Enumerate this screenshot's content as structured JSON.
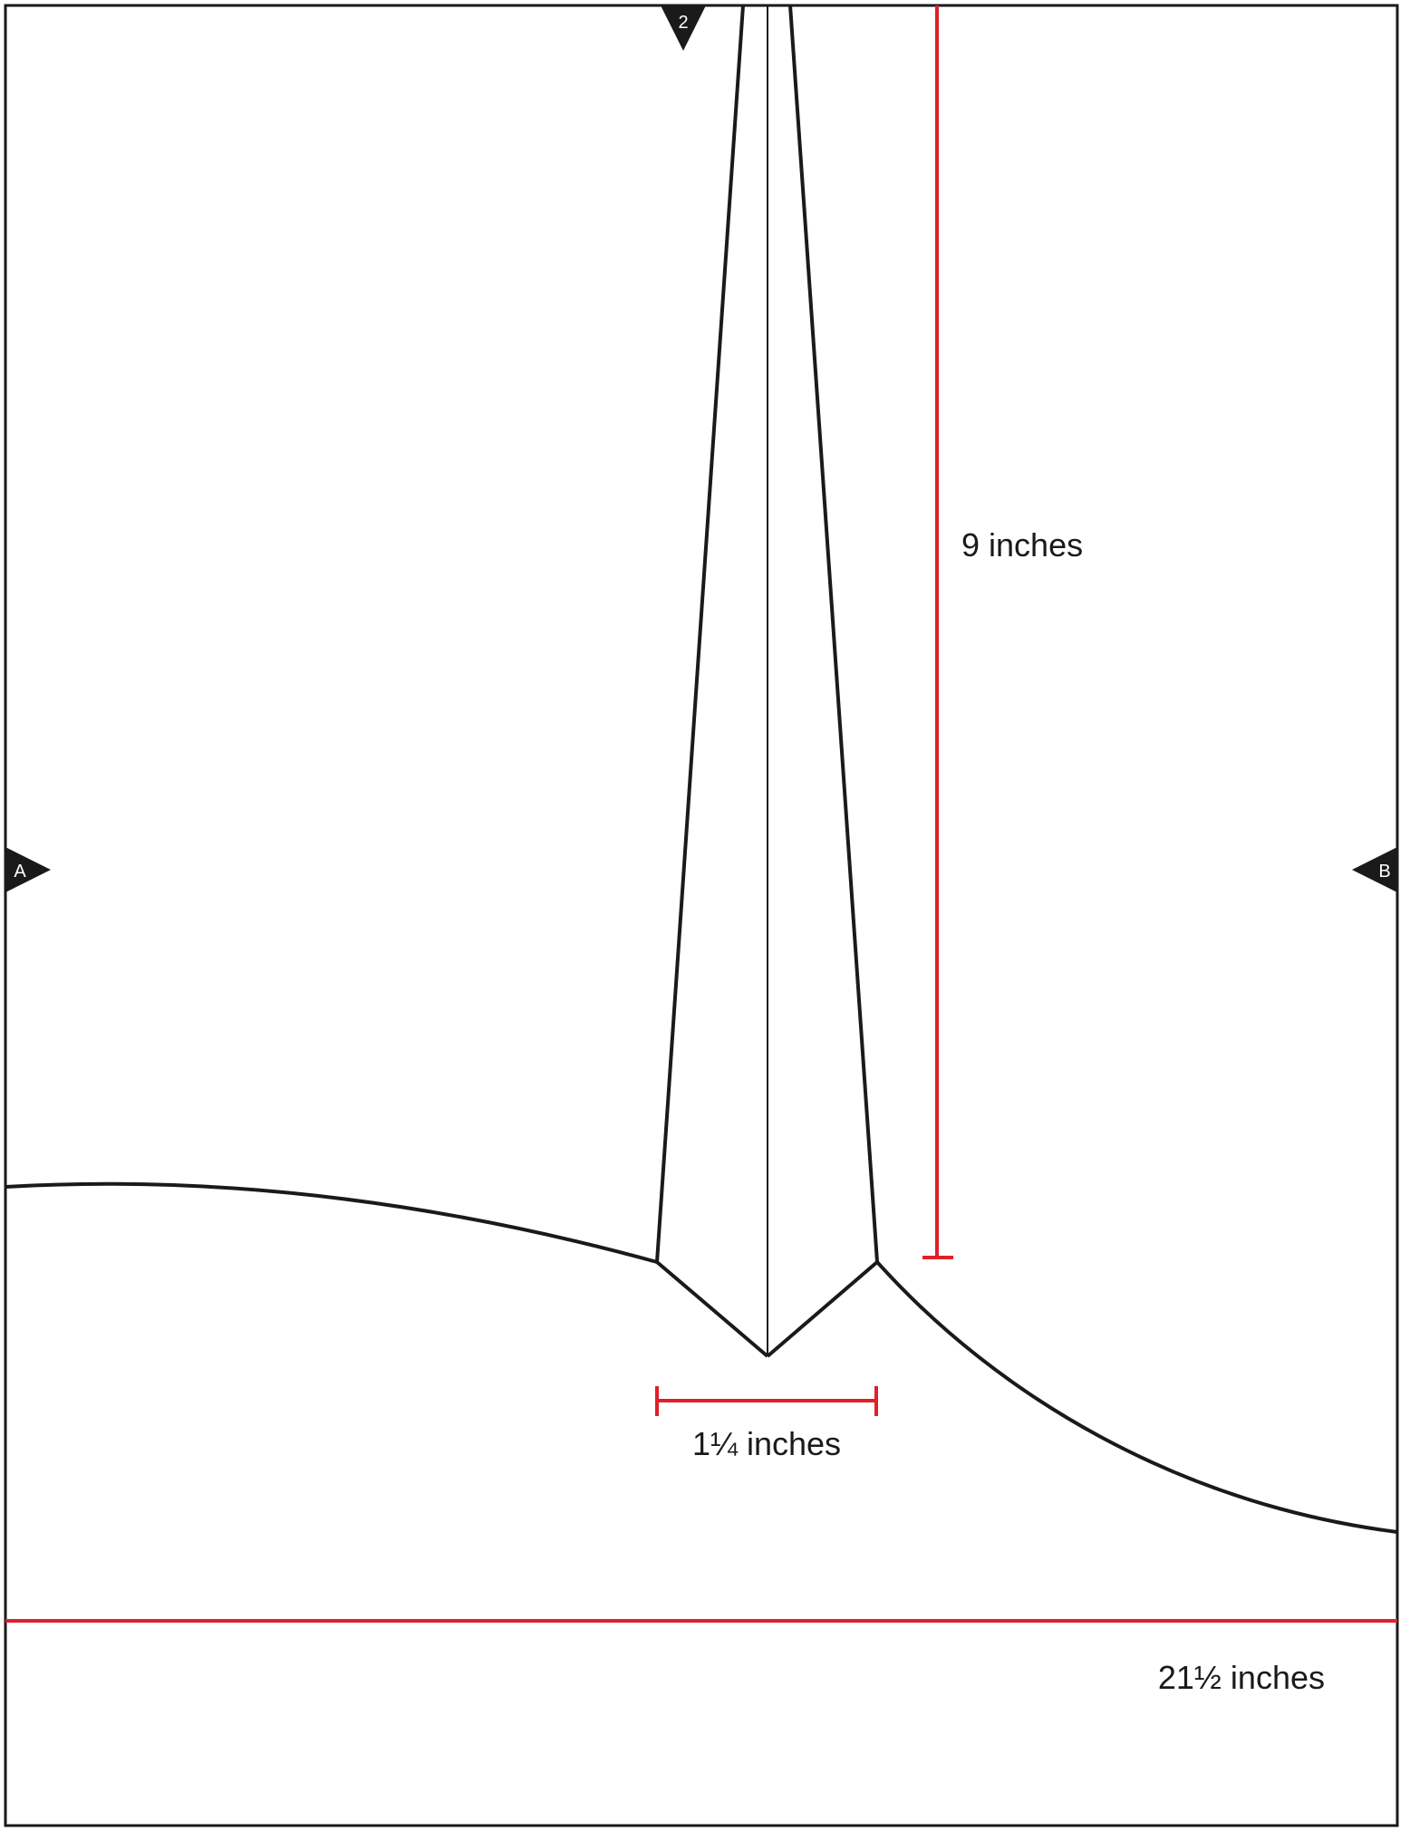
{
  "markers": {
    "top": "2",
    "left": "A",
    "right": "B"
  },
  "measurements": {
    "dart_length": "9 inches",
    "dart_width": "1¼ inches",
    "total_width": "21½ inches"
  },
  "colors": {
    "outline": "#1a1a1a",
    "measurement": "#e0202a",
    "marker_text": "#ffffff"
  }
}
